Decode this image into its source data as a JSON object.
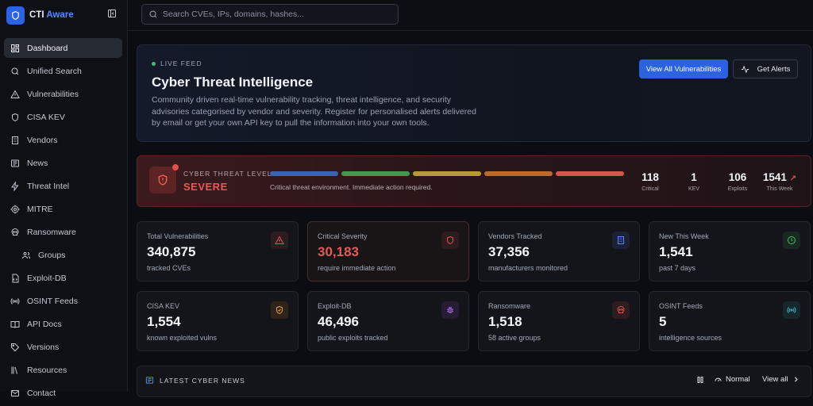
{
  "app": {
    "name_main": "CTI",
    "name_accent": "Aware"
  },
  "search": {
    "placeholder": "Search CVEs, IPs, domains, hashes..."
  },
  "sidebar": {
    "items": [
      {
        "label": "Dashboard",
        "icon": "dashboard-icon"
      },
      {
        "label": "Unified Search",
        "icon": "search-icon"
      },
      {
        "label": "Vulnerabilities",
        "icon": "warning-icon"
      },
      {
        "label": "CISA KEV",
        "icon": "shield-icon"
      },
      {
        "label": "Vendors",
        "icon": "building-icon"
      },
      {
        "label": "News",
        "icon": "newspaper-icon"
      },
      {
        "label": "Threat Intel",
        "icon": "bolt-icon"
      },
      {
        "label": "MITRE",
        "icon": "target-icon"
      },
      {
        "label": "Ransomware",
        "icon": "skull-icon"
      },
      {
        "label": "Groups",
        "icon": "users-icon"
      },
      {
        "label": "Exploit-DB",
        "icon": "file-code-icon"
      },
      {
        "label": "OSINT Feeds",
        "icon": "radio-icon"
      },
      {
        "label": "API Docs",
        "icon": "book-icon"
      },
      {
        "label": "Versions",
        "icon": "tag-icon"
      },
      {
        "label": "Resources",
        "icon": "library-icon"
      },
      {
        "label": "Contact",
        "icon": "mail-icon"
      }
    ]
  },
  "hero": {
    "badge": "LIVE FEED",
    "title": "Cyber Threat Intelligence",
    "description": "Community driven real-time vulnerability tracking, threat intelligence, and security advisories categorised by vendor and severity. Register for personalised alerts delivered by email or get your own API key to pull the information into your own tools.",
    "primary_button": "View All Vulnerabilities",
    "secondary_button": "Get Alerts"
  },
  "threat_level": {
    "label": "CYBER THREAT LEVEL",
    "value": "SEVERE",
    "description": "Critical threat environment. Immediate action required.",
    "bar_colors": [
      "#3d63b0",
      "#3f9a4d",
      "#b89a34",
      "#b96a2e",
      "#d9534f"
    ],
    "stats": [
      {
        "value": "118",
        "label": "Critical"
      },
      {
        "value": "1",
        "label": "KEV"
      },
      {
        "value": "106",
        "label": "Exploits"
      },
      {
        "value": "1541",
        "label": "This Week"
      }
    ]
  },
  "cards": [
    {
      "title": "Total Vulnerabilities",
      "value": "340,875",
      "sub": "tracked CVEs",
      "icon": "warning-icon",
      "color": "#e0534f"
    },
    {
      "title": "Critical Severity",
      "value": "30,183",
      "sub": "require immediate action",
      "icon": "shield-icon",
      "color": "#e0534f"
    },
    {
      "title": "Vendors Tracked",
      "value": "37,356",
      "sub": "manufacturers monitored",
      "icon": "building-icon",
      "color": "#5b8def"
    },
    {
      "title": "New This Week",
      "value": "1,541",
      "sub": "past 7 days",
      "icon": "clock-icon",
      "color": "#3fbf6a"
    },
    {
      "title": "CISA KEV",
      "value": "1,554",
      "sub": "known exploited vulns",
      "icon": "shield-check-icon",
      "color": "#e3a23a"
    },
    {
      "title": "Exploit-DB",
      "value": "46,496",
      "sub": "public exploits tracked",
      "icon": "bug-icon",
      "color": "#a66ee8"
    },
    {
      "title": "Ransomware",
      "value": "1,518",
      "sub": "58 active groups",
      "icon": "skull-icon",
      "color": "#e0534f"
    },
    {
      "title": "OSINT Feeds",
      "value": "5",
      "sub": "intelligence sources",
      "icon": "radio-icon",
      "color": "#3ab8c8"
    }
  ],
  "news": {
    "title": "LATEST CYBER NEWS",
    "speed": "Normal",
    "view_all": "View all"
  }
}
